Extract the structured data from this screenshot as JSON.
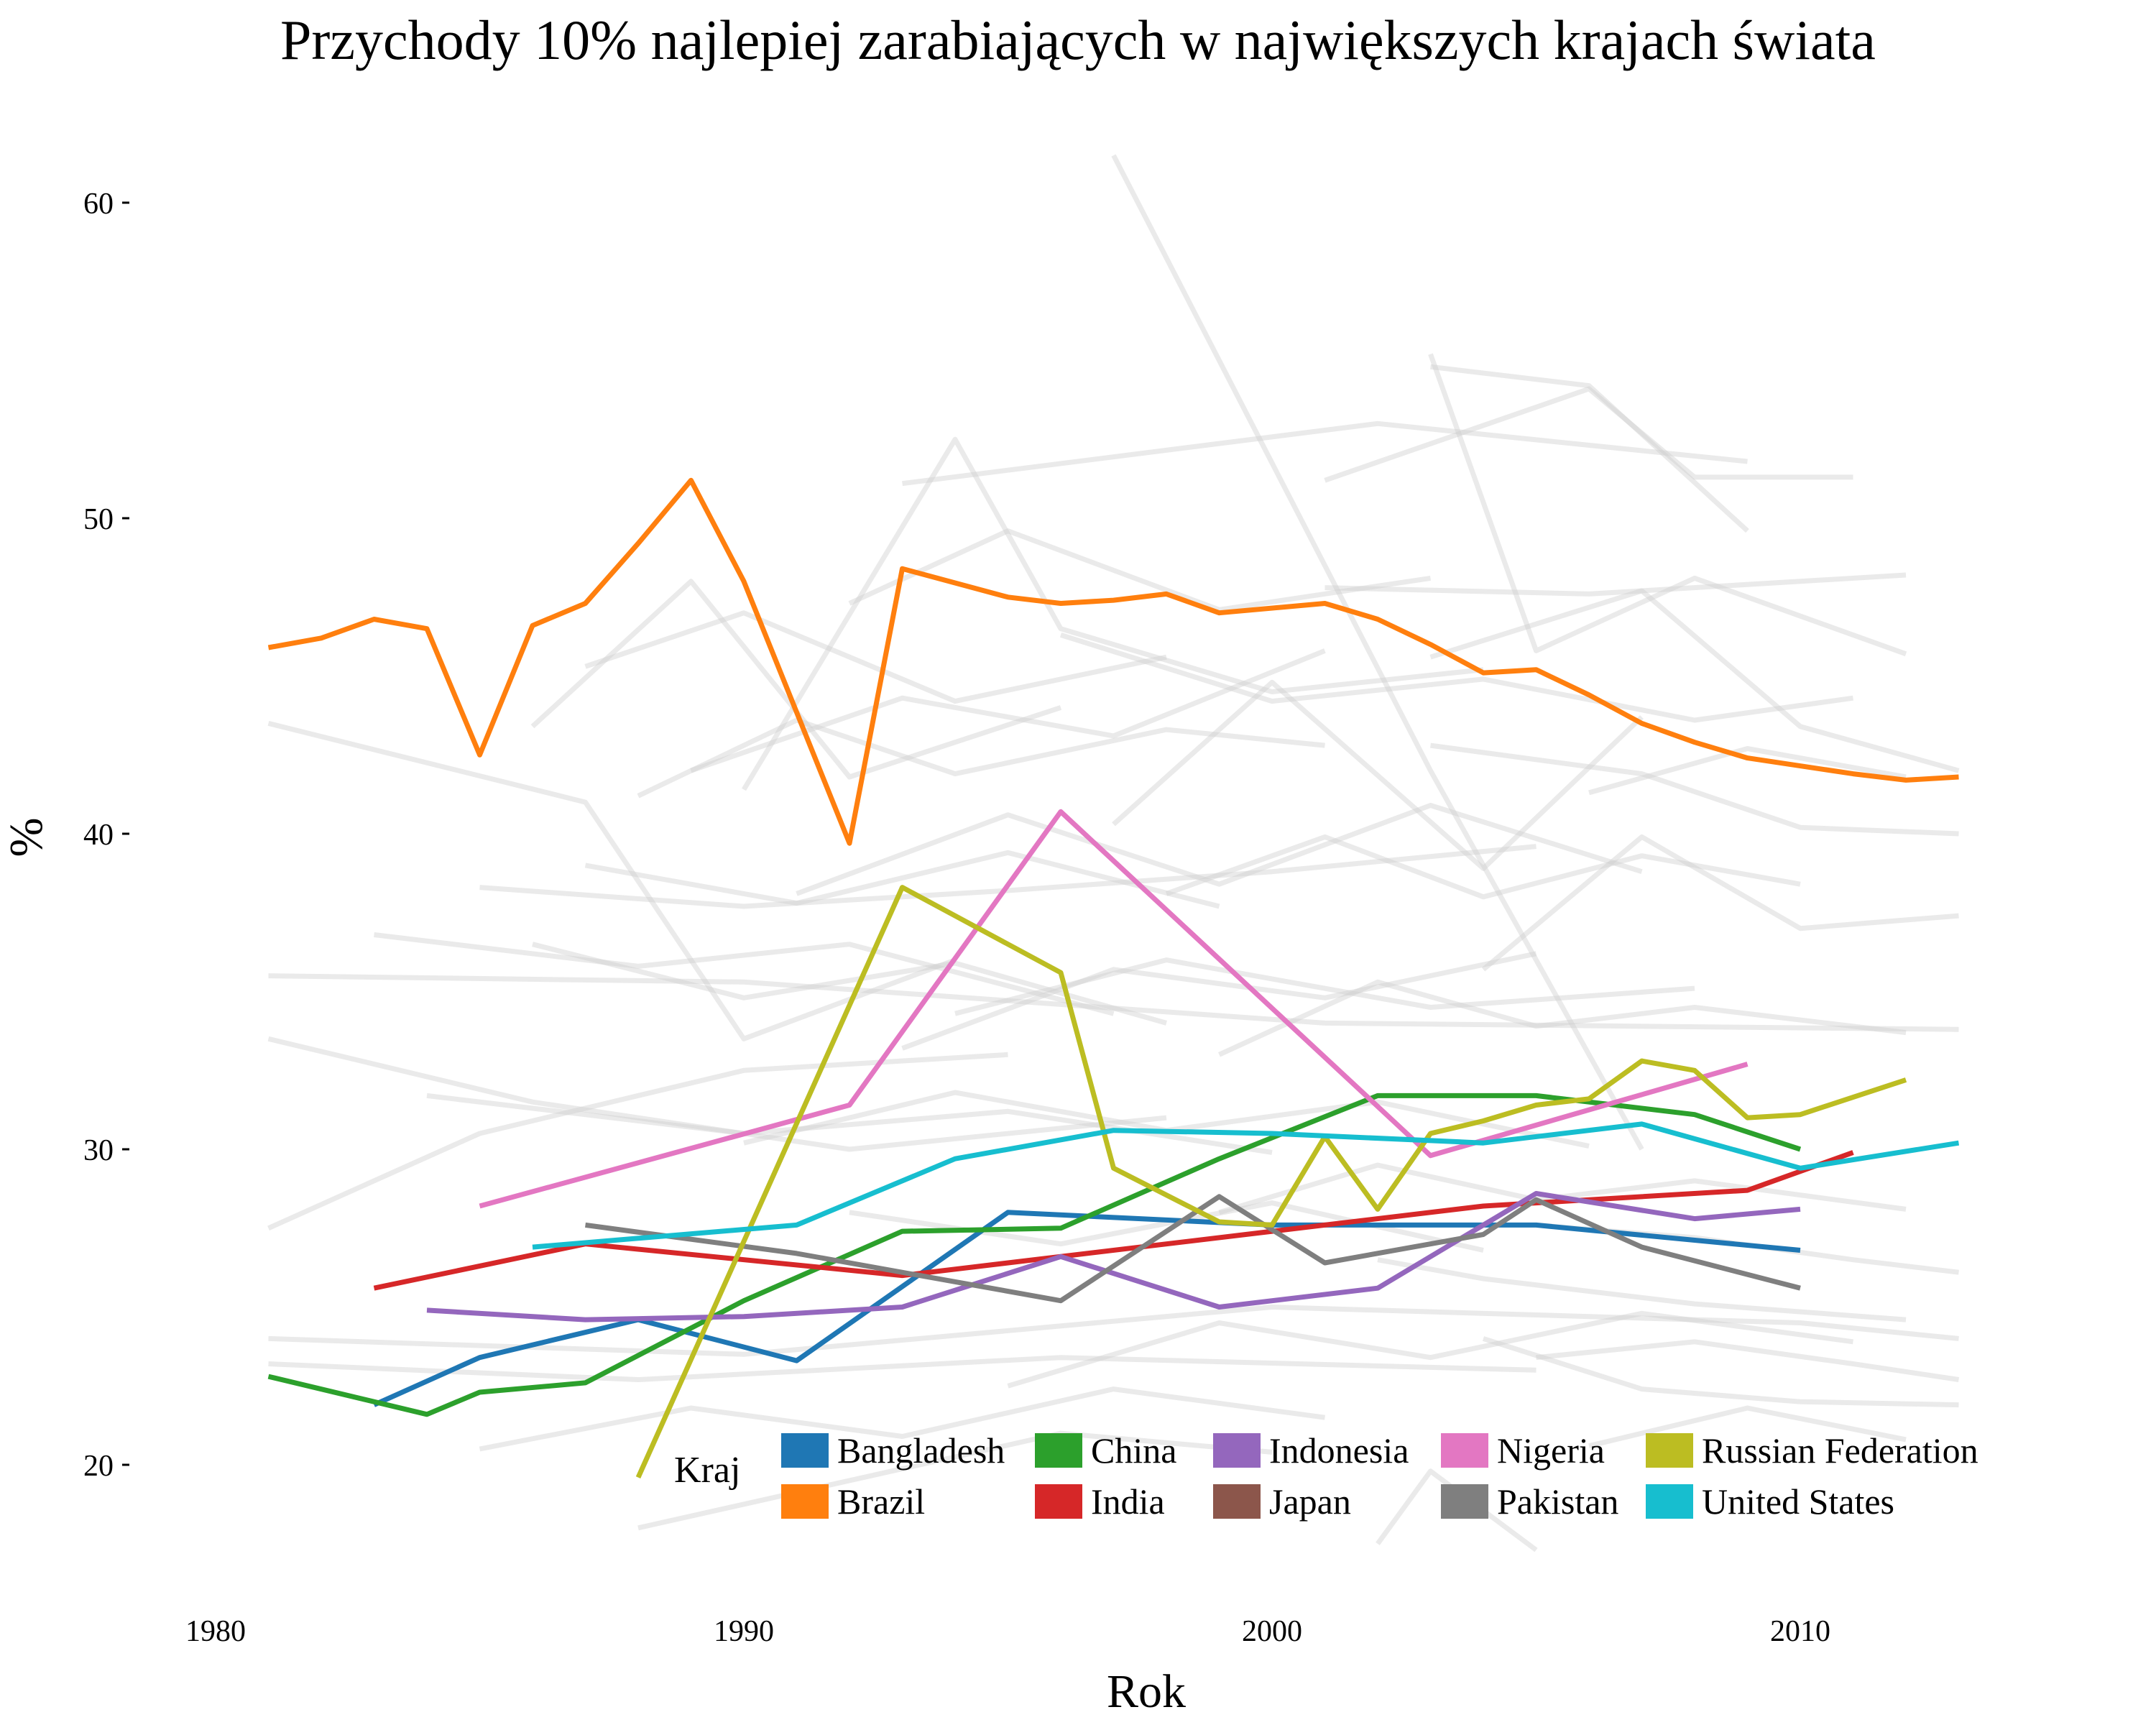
{
  "chart_data": {
    "type": "line",
    "title": "Przychody 10% najlepiej zarabiających w największych krajach świata",
    "xlabel": "Rok",
    "ylabel": "%",
    "xlim": [
      1977,
      2016.4
    ],
    "ylim": [
      15.5,
      62.6
    ],
    "x_ticks": [
      1980,
      1990,
      2000,
      2010
    ],
    "y_ticks": [
      20,
      30,
      40,
      50,
      60
    ],
    "grid": false,
    "legend": {
      "title": "Kraj",
      "position": "bottom-right"
    },
    "background_series_color": "#cccccc",
    "series": [
      {
        "name": "Bangladesh",
        "color": "#1f77b4",
        "points": [
          [
            1983,
            21.9
          ],
          [
            1985,
            23.4
          ],
          [
            1988,
            24.6
          ],
          [
            1991,
            23.3
          ],
          [
            1995,
            28.0
          ],
          [
            2000,
            27.6
          ],
          [
            2005,
            27.6
          ],
          [
            2010,
            26.8
          ]
        ]
      },
      {
        "name": "Brazil",
        "color": "#ff7f0e",
        "points": [
          [
            1981,
            45.9
          ],
          [
            1982,
            46.2
          ],
          [
            1983,
            46.8
          ],
          [
            1984,
            46.5
          ],
          [
            1985,
            42.5
          ],
          [
            1986,
            46.6
          ],
          [
            1987,
            47.3
          ],
          [
            1988,
            49.2
          ],
          [
            1989,
            51.2
          ],
          [
            1990,
            48.0
          ],
          [
            1992,
            39.7
          ],
          [
            1993,
            48.4
          ],
          [
            1995,
            47.5
          ],
          [
            1996,
            47.3
          ],
          [
            1997,
            47.4
          ],
          [
            1998,
            47.6
          ],
          [
            1999,
            47.0
          ],
          [
            2001,
            47.3
          ],
          [
            2002,
            46.8
          ],
          [
            2003,
            46.0
          ],
          [
            2004,
            45.1
          ],
          [
            2005,
            45.2
          ],
          [
            2006,
            44.4
          ],
          [
            2007,
            43.5
          ],
          [
            2008,
            42.9
          ],
          [
            2009,
            42.4
          ],
          [
            2011,
            41.9
          ],
          [
            2012,
            41.7
          ],
          [
            2013,
            41.8
          ]
        ]
      },
      {
        "name": "China",
        "color": "#2ca02c",
        "points": [
          [
            1981,
            22.8
          ],
          [
            1984,
            21.6
          ],
          [
            1985,
            22.3
          ],
          [
            1987,
            22.6
          ],
          [
            1990,
            25.2
          ],
          [
            1993,
            27.4
          ],
          [
            1996,
            27.5
          ],
          [
            1999,
            29.7
          ],
          [
            2002,
            31.7
          ],
          [
            2005,
            31.7
          ],
          [
            2008,
            31.1
          ],
          [
            2010,
            30.0
          ]
        ]
      },
      {
        "name": "India",
        "color": "#d62728",
        "points": [
          [
            1983,
            25.6
          ],
          [
            1987,
            27.0
          ],
          [
            1993,
            26.0
          ],
          [
            2004,
            28.2
          ],
          [
            2009,
            28.7
          ],
          [
            2011,
            29.9
          ]
        ]
      },
      {
        "name": "Indonesia",
        "color": "#9467bd",
        "points": [
          [
            1984,
            24.9
          ],
          [
            1987,
            24.6
          ],
          [
            1990,
            24.7
          ],
          [
            1993,
            25.0
          ],
          [
            1996,
            26.6
          ],
          [
            1999,
            25.0
          ],
          [
            2002,
            25.6
          ],
          [
            2005,
            28.6
          ],
          [
            2008,
            27.8
          ],
          [
            2010,
            28.1
          ]
        ]
      },
      {
        "name": "Japan",
        "color": "#8c564b",
        "points": []
      },
      {
        "name": "Nigeria",
        "color": "#e377c2",
        "points": [
          [
            1985,
            28.2
          ],
          [
            1992,
            31.4
          ],
          [
            1996,
            40.7
          ],
          [
            2003,
            29.8
          ],
          [
            2009,
            32.7
          ]
        ]
      },
      {
        "name": "Pakistan",
        "color": "#7f7f7f",
        "points": [
          [
            1987,
            27.6
          ],
          [
            1991,
            26.7
          ],
          [
            1996,
            25.2
          ],
          [
            1999,
            28.5
          ],
          [
            2001,
            26.4
          ],
          [
            2004,
            27.3
          ],
          [
            2005,
            28.4
          ],
          [
            2007,
            26.9
          ],
          [
            2010,
            25.6
          ]
        ]
      },
      {
        "name": "Russian Federation",
        "color": "#bcbd22",
        "points": [
          [
            1988,
            19.6
          ],
          [
            1993,
            38.3
          ],
          [
            1996,
            35.6
          ],
          [
            1997,
            29.4
          ],
          [
            1999,
            27.7
          ],
          [
            2000,
            27.6
          ],
          [
            2001,
            30.4
          ],
          [
            2002,
            28.1
          ],
          [
            2003,
            30.5
          ],
          [
            2004,
            30.9
          ],
          [
            2005,
            31.4
          ],
          [
            2006,
            31.6
          ],
          [
            2007,
            32.8
          ],
          [
            2008,
            32.5
          ],
          [
            2009,
            31.0
          ],
          [
            2010,
            31.1
          ],
          [
            2012,
            32.2
          ]
        ]
      },
      {
        "name": "United States",
        "color": "#17becf",
        "points": [
          [
            1986,
            26.9
          ],
          [
            1991,
            27.6
          ],
          [
            1994,
            29.7
          ],
          [
            1997,
            30.6
          ],
          [
            2000,
            30.5
          ],
          [
            2004,
            30.2
          ],
          [
            2007,
            30.8
          ],
          [
            2010,
            29.4
          ],
          [
            2013,
            30.2
          ]
        ]
      }
    ],
    "background_series": [
      [
        [
          1981,
          43.5
        ],
        [
          1987,
          41.0
        ],
        [
          1990,
          33.5
        ],
        [
          1994,
          36.0
        ]
      ],
      [
        [
          1981,
          35.5
        ],
        [
          1990,
          35.3
        ],
        [
          2001,
          34.0
        ],
        [
          2013,
          33.8
        ]
      ],
      [
        [
          1981,
          33.5
        ],
        [
          1986,
          31.5
        ],
        [
          1992,
          30.0
        ],
        [
          1998,
          31.0
        ]
      ],
      [
        [
          1981,
          27.5
        ],
        [
          1985,
          30.5
        ],
        [
          1990,
          32.5
        ],
        [
          1995,
          33.0
        ]
      ],
      [
        [
          1981,
          24.0
        ],
        [
          1990,
          23.5
        ],
        [
          2000,
          25.0
        ],
        [
          2010,
          24.5
        ],
        [
          2013,
          24.0
        ]
      ],
      [
        [
          1981,
          23.2
        ],
        [
          1988,
          22.7
        ],
        [
          1996,
          23.4
        ],
        [
          2005,
          23.0
        ]
      ],
      [
        [
          1985,
          38.3
        ],
        [
          1990,
          37.7
        ],
        [
          1995,
          38.2
        ],
        [
          2000,
          38.8
        ],
        [
          2005,
          39.6
        ]
      ],
      [
        [
          1986,
          43.4
        ],
        [
          1989,
          48.0
        ],
        [
          1992,
          41.8
        ],
        [
          1996,
          44.0
        ]
      ],
      [
        [
          1987,
          45.3
        ],
        [
          1990,
          47.0
        ],
        [
          1994,
          44.2
        ],
        [
          1998,
          45.6
        ]
      ],
      [
        [
          1988,
          41.2
        ],
        [
          1991,
          43.6
        ],
        [
          1994,
          41.9
        ],
        [
          1998,
          43.3
        ],
        [
          2001,
          42.8
        ]
      ],
      [
        [
          1989,
          42.0
        ],
        [
          1993,
          44.3
        ],
        [
          1997,
          43.1
        ],
        [
          2001,
          45.8
        ]
      ],
      [
        [
          1990,
          41.4
        ],
        [
          1994,
          52.5
        ],
        [
          1996,
          46.5
        ],
        [
          2000,
          44.5
        ],
        [
          2004,
          45.2
        ]
      ],
      [
        [
          1993,
          51.1
        ],
        [
          2002,
          53.0
        ],
        [
          2009,
          51.8
        ]
      ],
      [
        [
          1992,
          47.3
        ],
        [
          1995,
          49.6
        ],
        [
          1999,
          47.1
        ],
        [
          2003,
          48.1
        ]
      ],
      [
        [
          1993,
          33.2
        ],
        [
          1997,
          35.7
        ],
        [
          2001,
          34.8
        ],
        [
          2005,
          36.2
        ]
      ],
      [
        [
          1994,
          34.3
        ],
        [
          1998,
          36.0
        ],
        [
          2003,
          34.5
        ],
        [
          2008,
          35.1
        ]
      ],
      [
        [
          1997,
          61.5
        ],
        [
          2003,
          42.0
        ],
        [
          2007,
          30.0
        ]
      ],
      [
        [
          1997,
          40.3
        ],
        [
          2000,
          44.8
        ],
        [
          2004,
          38.9
        ],
        [
          2007,
          43.7
        ]
      ],
      [
        [
          2003,
          55.2
        ],
        [
          2005,
          45.8
        ],
        [
          2008,
          48.1
        ],
        [
          2012,
          45.7
        ]
      ],
      [
        [
          2003,
          54.8
        ],
        [
          2006,
          54.2
        ],
        [
          2009,
          49.6
        ]
      ],
      [
        [
          2001,
          51.2
        ],
        [
          2006,
          54.1
        ],
        [
          2008,
          51.3
        ],
        [
          2011,
          51.3
        ]
      ],
      [
        [
          2001,
          47.8
        ],
        [
          2006,
          47.6
        ],
        [
          2012,
          48.2
        ]
      ],
      [
        [
          2003,
          45.6
        ],
        [
          2007,
          47.7
        ],
        [
          2010,
          43.4
        ],
        [
          2013,
          42.0
        ]
      ],
      [
        [
          2003,
          42.8
        ],
        [
          2007,
          41.9
        ],
        [
          2010,
          40.2
        ],
        [
          2013,
          40.0
        ]
      ],
      [
        [
          2004,
          35.7
        ],
        [
          2007,
          39.9
        ],
        [
          2010,
          37.0
        ],
        [
          2013,
          37.4
        ]
      ],
      [
        [
          2002,
          26.5
        ],
        [
          2004,
          25.9
        ],
        [
          2008,
          25.1
        ],
        [
          2012,
          24.6
        ]
      ],
      [
        [
          2004,
          24.0
        ],
        [
          2007,
          22.4
        ],
        [
          2010,
          22.0
        ],
        [
          2013,
          21.9
        ]
      ],
      [
        [
          1988,
          18.0
        ],
        [
          1992,
          19.5
        ],
        [
          1996,
          21.0
        ],
        [
          2000,
          20.4
        ]
      ],
      [
        [
          2002,
          17.5
        ],
        [
          2003,
          19.8
        ],
        [
          2005,
          17.3
        ]
      ],
      [
        [
          1999,
          33.0
        ],
        [
          2002,
          35.3
        ],
        [
          2005,
          33.9
        ],
        [
          2008,
          34.5
        ],
        [
          2012,
          33.7
        ]
      ],
      [
        [
          1999,
          28.0
        ],
        [
          2002,
          29.5
        ],
        [
          2005,
          28.4
        ],
        [
          2008,
          29.0
        ],
        [
          2012,
          28.1
        ]
      ],
      [
        [
          1992,
          28.0
        ],
        [
          1996,
          27.0
        ],
        [
          2000,
          28.3
        ],
        [
          2004,
          26.8
        ]
      ],
      [
        [
          1983,
          36.8
        ],
        [
          1988,
          35.8
        ],
        [
          1992,
          36.5
        ],
        [
          1997,
          34.3
        ]
      ],
      [
        [
          1984,
          31.7
        ],
        [
          1990,
          30.5
        ],
        [
          1995,
          31.2
        ],
        [
          2000,
          29.9
        ]
      ],
      [
        [
          2005,
          27.6
        ],
        [
          2008,
          27.2
        ],
        [
          2011,
          26.5
        ],
        [
          2013,
          26.1
        ]
      ],
      [
        [
          2005,
          23.4
        ],
        [
          2008,
          23.9
        ],
        [
          2011,
          23.2
        ],
        [
          2013,
          22.7
        ]
      ],
      [
        [
          1991,
          38.1
        ],
        [
          1995,
          40.6
        ],
        [
          1999,
          38.4
        ],
        [
          2003,
          40.9
        ],
        [
          2007,
          38.8
        ]
      ],
      [
        [
          1995,
          22.5
        ],
        [
          1999,
          24.5
        ],
        [
          2003,
          23.4
        ],
        [
          2007,
          24.8
        ],
        [
          2011,
          23.9
        ]
      ],
      [
        [
          1996,
          46.3
        ],
        [
          2000,
          44.2
        ],
        [
          2004,
          44.9
        ],
        [
          2008,
          43.6
        ],
        [
          2011,
          44.3
        ]
      ],
      [
        [
          1987,
          39.0
        ],
        [
          1991,
          37.8
        ],
        [
          1995,
          39.4
        ],
        [
          1999,
          37.7
        ]
      ],
      [
        [
          1986,
          36.5
        ],
        [
          1990,
          34.8
        ],
        [
          1994,
          35.9
        ],
        [
          1998,
          34.0
        ]
      ],
      [
        [
          1990,
          30.2
        ],
        [
          1994,
          31.8
        ],
        [
          1998,
          30.6
        ],
        [
          2002,
          31.5
        ],
        [
          2006,
          30.1
        ]
      ],
      [
        [
          1985,
          20.5
        ],
        [
          1989,
          21.8
        ],
        [
          1993,
          20.9
        ],
        [
          1997,
          22.4
        ],
        [
          2001,
          21.5
        ]
      ],
      [
        [
          2006,
          20.6
        ],
        [
          2009,
          21.8
        ],
        [
          2012,
          20.8
        ]
      ],
      [
        [
          2006,
          41.3
        ],
        [
          2009,
          42.7
        ],
        [
          2012,
          41.8
        ]
      ],
      [
        [
          1998,
          38.1
        ],
        [
          2001,
          39.9
        ],
        [
          2004,
          38.0
        ],
        [
          2007,
          39.3
        ],
        [
          2010,
          38.4
        ]
      ]
    ]
  }
}
